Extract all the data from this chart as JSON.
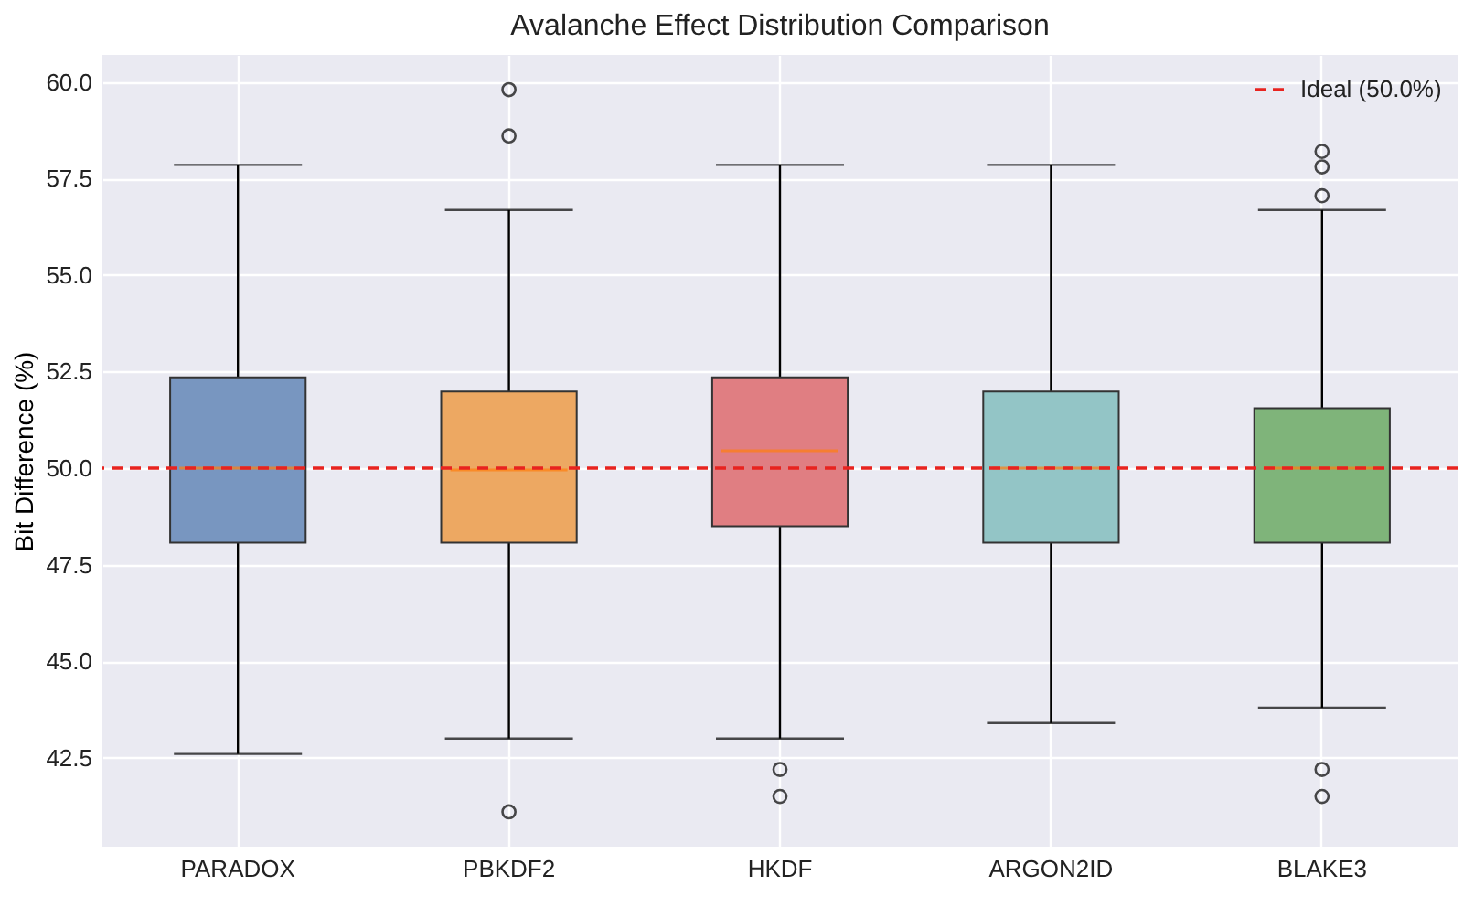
{
  "chart_data": {
    "type": "box",
    "title": "Avalanche Effect Distribution Comparison",
    "ylabel": "Bit Difference (%)",
    "categories": [
      "PARADOX",
      "PBKDF2",
      "HKDF",
      "ARGON2ID",
      "BLAKE3"
    ],
    "colors": [
      "#7896c0",
      "#eda862",
      "#e07e82",
      "#93c5c6",
      "#7fb47a"
    ],
    "boxes": [
      {
        "low": 42.6,
        "q1": 48.07,
        "median": 50.0,
        "q3": 52.35,
        "high": 57.85
      },
      {
        "low": 43.0,
        "q1": 48.07,
        "median": 49.95,
        "q3": 51.98,
        "high": 56.68,
        "outliers": [
          59.8,
          58.6,
          41.1
        ]
      },
      {
        "low": 43.0,
        "q1": 48.5,
        "median": 50.45,
        "q3": 52.35,
        "high": 57.85,
        "outliers": [
          42.2,
          41.5
        ]
      },
      {
        "low": 43.4,
        "q1": 48.07,
        "median": 50.0,
        "q3": 51.98,
        "high": 57.85
      },
      {
        "low": 43.8,
        "q1": 48.07,
        "median": 50.0,
        "q3": 51.55,
        "high": 56.68,
        "outliers": [
          58.2,
          57.8,
          57.05,
          42.2,
          41.5
        ]
      }
    ],
    "ylim": [
      40.2,
      60.7
    ],
    "yticks": [
      {
        "value": 42.5,
        "label": "42.5"
      },
      {
        "value": 45,
        "label": "45.0"
      },
      {
        "value": 47.5,
        "label": "47.5"
      },
      {
        "value": 50,
        "label": "50.0"
      },
      {
        "value": 52.5,
        "label": "52.5"
      },
      {
        "value": 55,
        "label": "55.0"
      },
      {
        "value": 57.5,
        "label": "57.5"
      },
      {
        "value": 60,
        "label": "60.0"
      }
    ],
    "ref_lines": [
      {
        "axis": "y",
        "value": 50,
        "label": "Ideal (50.0%)",
        "color": "#e8231f",
        "line_style": "dashed"
      }
    ],
    "grid": true,
    "legend": "top right",
    "marker": "circle"
  }
}
